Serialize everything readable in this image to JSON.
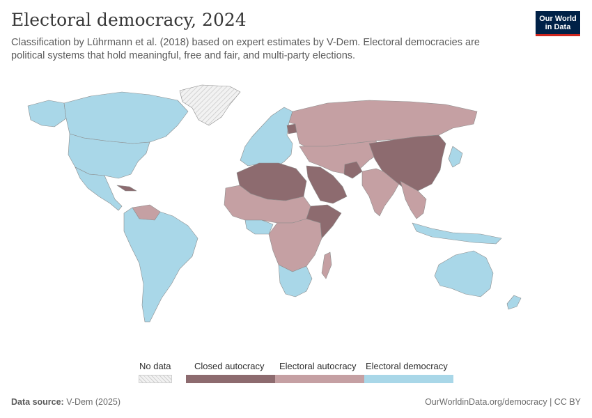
{
  "title": "Electoral democracy, 2024",
  "subtitle": "Classification by Lührmann et al. (2018) based on expert estimates by V-Dem. Electoral democracies are political systems that hold meaningful, free and fair, and multi-party elections.",
  "logo": {
    "line1": "Our World",
    "line2": "in Data"
  },
  "colors": {
    "no_data": "#e8e8e8",
    "closed_autocracy": "#8d6b6f",
    "electoral_autocracy": "#c5a0a3",
    "electoral_democracy": "#a9d7e8",
    "border": "#8c8c8c"
  },
  "legend": {
    "no_data": "No data",
    "closed_autocracy": "Closed autocracy",
    "electoral_autocracy": "Electoral autocracy",
    "electoral_democracy": "Electoral democracy"
  },
  "footer": {
    "source_label": "Data source:",
    "source_value": "V-Dem (2025)",
    "credit": "OurWorldinData.org/democracy | CC BY"
  }
}
